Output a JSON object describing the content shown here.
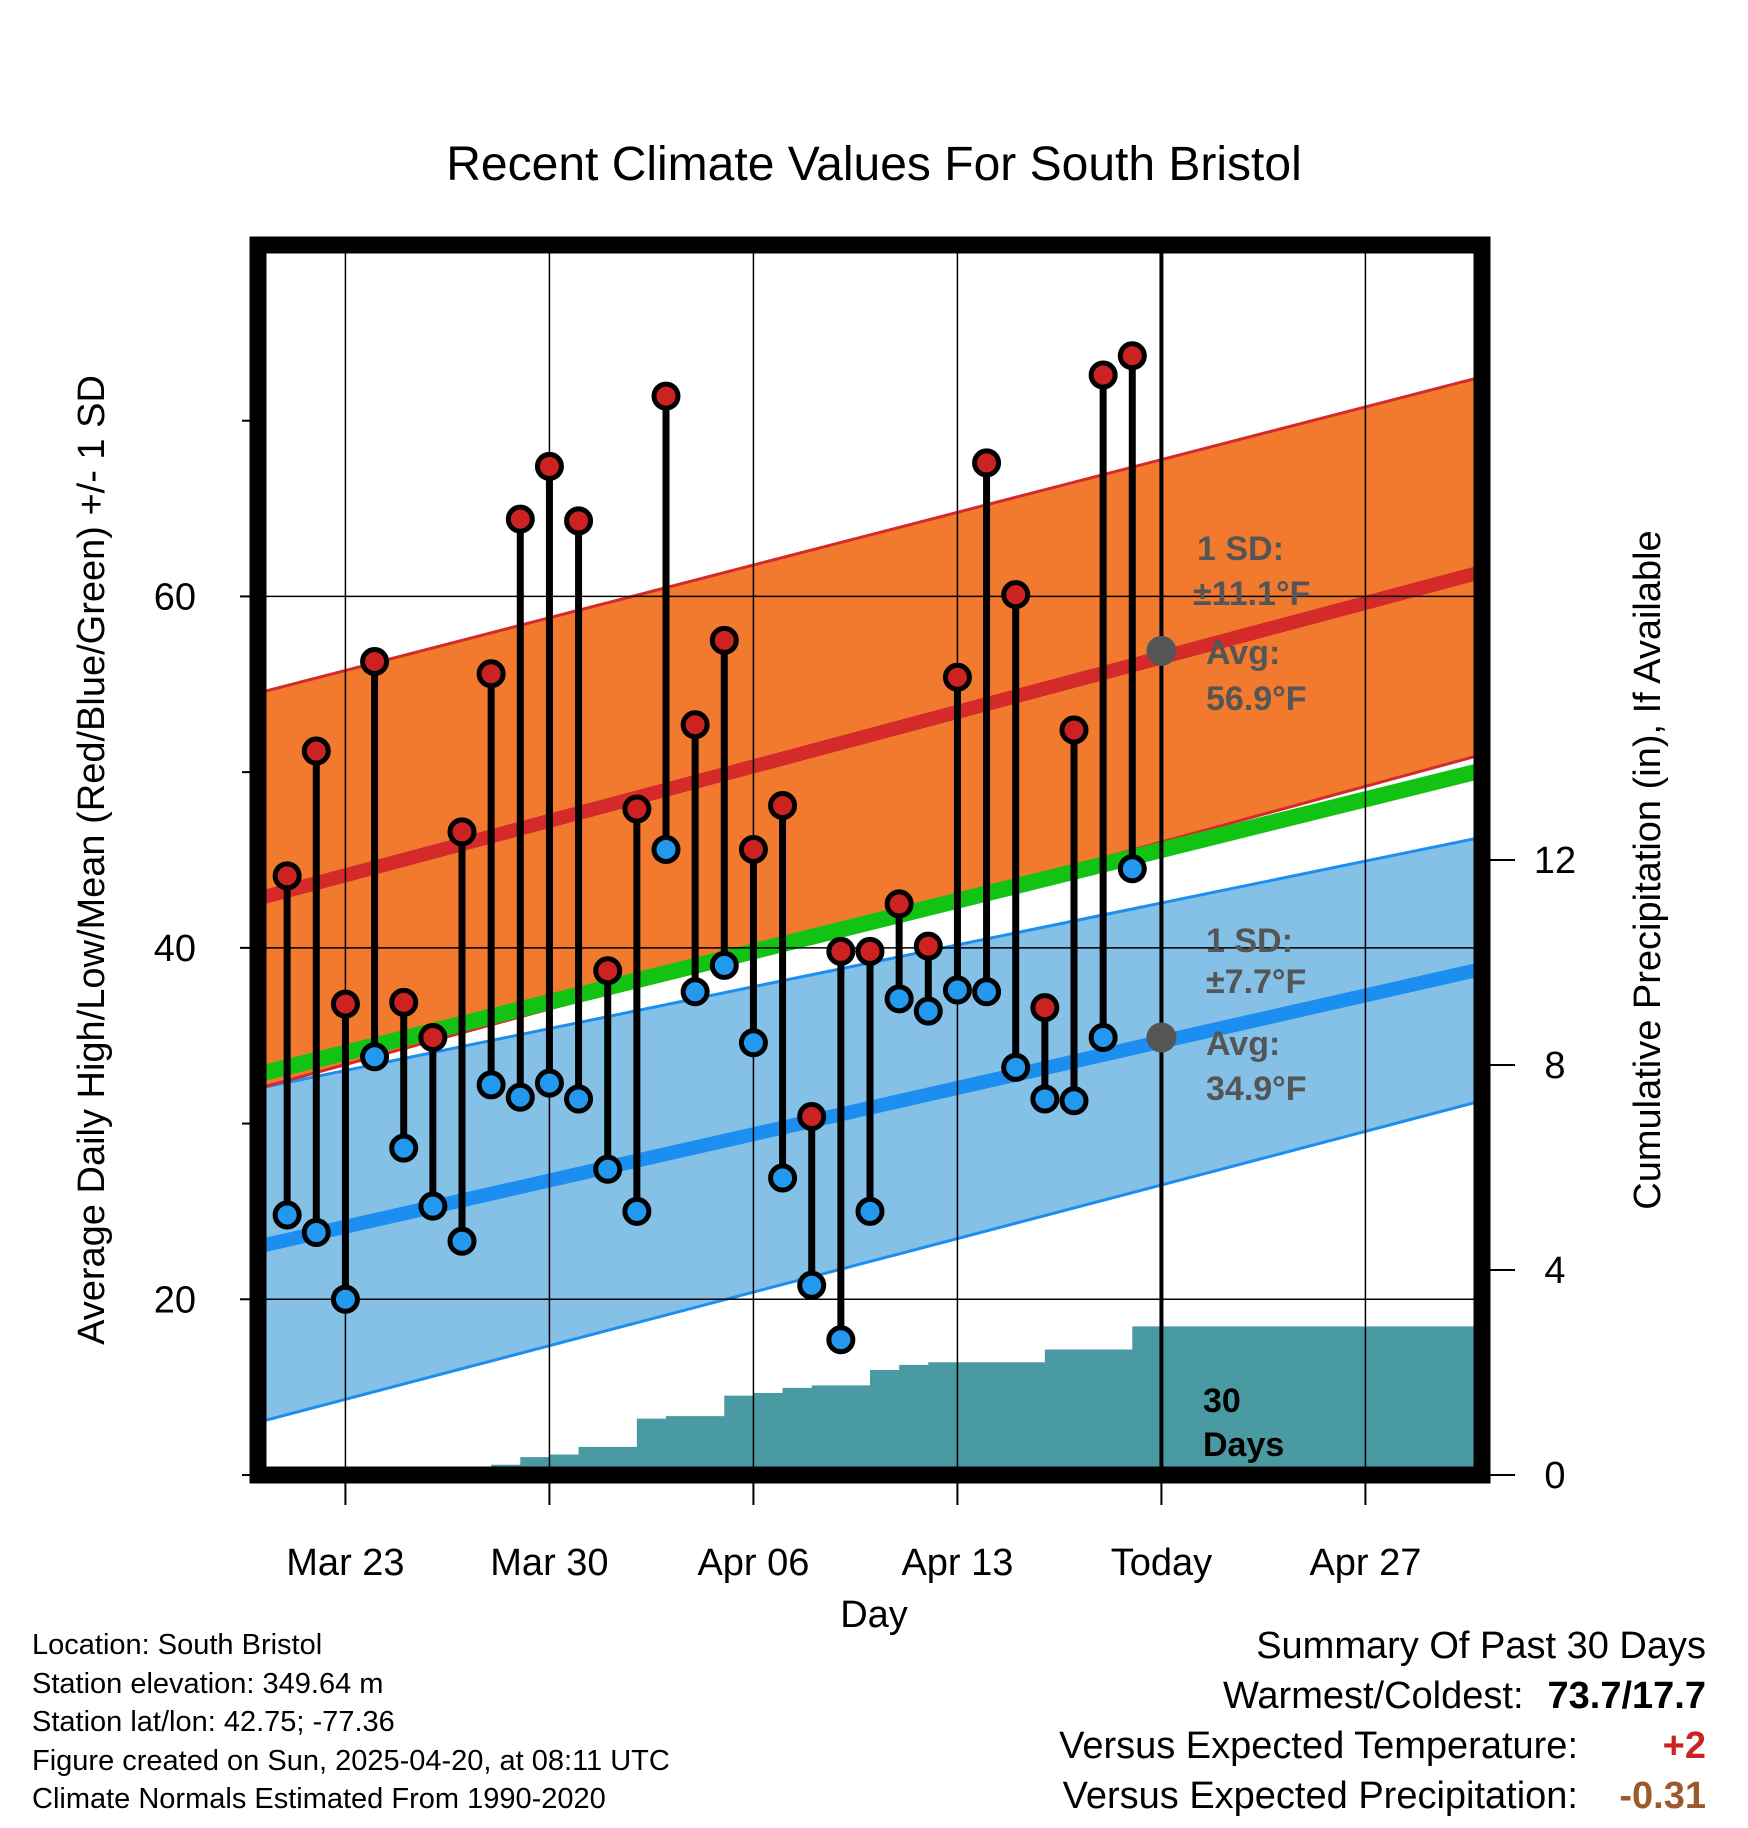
{
  "chart_data": {
    "type": "line",
    "title": "Recent Climate Values For South Bristol",
    "xlabel": "Day",
    "ylabel": "Average Daily High/Low/Mean (Red/Blue/Green) +/- 1 SD",
    "y2label": "Cumulative Precipitation (in), If Available",
    "x_range": [
      "2025-03-20",
      "2025-05-01"
    ],
    "ylim": [
      10,
      80
    ],
    "y2lim": [
      0,
      24
    ],
    "x_ticks": [
      {
        "date": "2025-03-23",
        "label": "Mar 23"
      },
      {
        "date": "2025-03-30",
        "label": "Mar 30"
      },
      {
        "date": "2025-04-06",
        "label": "Apr 06"
      },
      {
        "date": "2025-04-13",
        "label": "Apr 13"
      },
      {
        "date": "2025-04-20",
        "label": "Today"
      },
      {
        "date": "2025-04-27",
        "label": "Apr 27"
      }
    ],
    "y_ticks": [
      20,
      40,
      60
    ],
    "y_minor_ticks": [
      10,
      30,
      50,
      70
    ],
    "y2_ticks": [
      0,
      4,
      8,
      12
    ],
    "grid": true,
    "colors": {
      "high_band": "#f27a2e",
      "high_line": "#d42a2a",
      "low_band": "#85c1e7",
      "low_line": "#1c8ef0",
      "mean_line": "#13c313",
      "precip": "#4a9aa4",
      "high_dot": "#cc2222",
      "low_dot": "#2299ee",
      "annotation": "#555555"
    },
    "normals": {
      "dates": [
        "2025-03-20",
        "2025-05-01"
      ],
      "high_avg": [
        42.8,
        61.4
      ],
      "high_upper": [
        54.5,
        72.5
      ],
      "high_lower": [
        32.0,
        51.0
      ],
      "low_avg": [
        23.0,
        38.8
      ],
      "low_upper": [
        32.0,
        46.3
      ],
      "low_lower": [
        13.0,
        31.3
      ],
      "mean_avg": [
        32.8,
        50.1
      ]
    },
    "series": [
      {
        "name": "High",
        "dates": [
          "2025-03-21",
          "2025-03-22",
          "2025-03-23",
          "2025-03-24",
          "2025-03-25",
          "2025-03-26",
          "2025-03-27",
          "2025-03-28",
          "2025-03-29",
          "2025-03-30",
          "2025-03-31",
          "2025-04-01",
          "2025-04-02",
          "2025-04-03",
          "2025-04-04",
          "2025-04-05",
          "2025-04-06",
          "2025-04-07",
          "2025-04-08",
          "2025-04-09",
          "2025-04-10",
          "2025-04-11",
          "2025-04-12",
          "2025-04-13",
          "2025-04-14",
          "2025-04-15",
          "2025-04-16",
          "2025-04-17",
          "2025-04-18",
          "2025-04-19"
        ],
        "values": [
          44.1,
          51.2,
          36.8,
          56.3,
          36.9,
          34.9,
          46.6,
          55.6,
          64.4,
          67.4,
          64.3,
          38.7,
          47.9,
          71.4,
          52.7,
          57.5,
          45.6,
          48.1,
          30.4,
          39.8,
          39.8,
          42.5,
          40.1,
          55.4,
          67.6,
          60.1,
          36.6,
          52.4,
          72.6,
          73.7
        ]
      },
      {
        "name": "Low",
        "dates": [
          "2025-03-21",
          "2025-03-22",
          "2025-03-23",
          "2025-03-24",
          "2025-03-25",
          "2025-03-26",
          "2025-03-27",
          "2025-03-28",
          "2025-03-29",
          "2025-03-30",
          "2025-03-31",
          "2025-04-01",
          "2025-04-02",
          "2025-04-03",
          "2025-04-04",
          "2025-04-05",
          "2025-04-06",
          "2025-04-07",
          "2025-04-08",
          "2025-04-09",
          "2025-04-10",
          "2025-04-11",
          "2025-04-12",
          "2025-04-13",
          "2025-04-14",
          "2025-04-15",
          "2025-04-16",
          "2025-04-17",
          "2025-04-18",
          "2025-04-19"
        ],
        "values": [
          24.8,
          23.8,
          20.0,
          33.8,
          28.6,
          25.3,
          23.3,
          32.2,
          31.5,
          32.3,
          31.4,
          27.4,
          25.0,
          45.6,
          37.5,
          39.0,
          34.6,
          26.9,
          20.8,
          17.7,
          25.0,
          37.1,
          36.4,
          37.6,
          37.5,
          33.2,
          31.4,
          31.3,
          34.9,
          44.5
        ]
      }
    ],
    "precip_cumulative": {
      "dates": [
        "2025-03-20",
        "2025-03-25",
        "2025-03-26",
        "2025-03-27",
        "2025-03-28",
        "2025-03-29",
        "2025-03-30",
        "2025-03-31",
        "2025-04-01",
        "2025-04-02",
        "2025-04-03",
        "2025-04-04",
        "2025-04-05",
        "2025-04-06",
        "2025-04-07",
        "2025-04-08",
        "2025-04-09",
        "2025-04-10",
        "2025-04-11",
        "2025-04-12",
        "2025-04-13",
        "2025-04-14",
        "2025-04-15",
        "2025-04-16",
        "2025-04-17",
        "2025-04-18",
        "2025-04-19",
        "2025-05-01"
      ],
      "values": [
        0,
        0,
        0.1,
        0.1,
        0.2,
        0.35,
        0.4,
        0.55,
        0.55,
        1.1,
        1.15,
        1.15,
        1.55,
        1.6,
        1.7,
        1.75,
        1.75,
        2.05,
        2.15,
        2.2,
        2.2,
        2.2,
        2.2,
        2.45,
        2.45,
        2.45,
        2.9,
        2.9
      ]
    },
    "today": "2025-04-20",
    "annotations": {
      "high_sd_label": "1 SD:",
      "high_sd_value": "±11.1°F",
      "high_avg_label": "Avg:",
      "high_avg_value": "56.9°F",
      "high_avg": 56.9,
      "low_sd_label": "1 SD:",
      "low_sd_value": "±7.7°F",
      "low_avg_label": "Avg:",
      "low_avg_value": "34.9°F",
      "low_avg": 34.9,
      "days_line1": "30",
      "days_line2": "Days"
    }
  },
  "info": {
    "location": "Location: South Bristol",
    "elevation": "Station elevation: 349.64 m",
    "latlon": "Station lat/lon: 42.75; -77.36",
    "created": "Figure created on Sun, 2025-04-20, at 08:11 UTC",
    "normals": "Climate Normals Estimated From 1990-2020"
  },
  "summary": {
    "title": "Summary Of Past 30 Days",
    "warm_cold_label": "Warmest/Coldest:",
    "warm_cold_value": "73.7/17.7",
    "temp_label": "Versus Expected Temperature:",
    "temp_value": "+2",
    "precip_label": "Versus Expected Precipitation:",
    "precip_value": "-0.31"
  }
}
